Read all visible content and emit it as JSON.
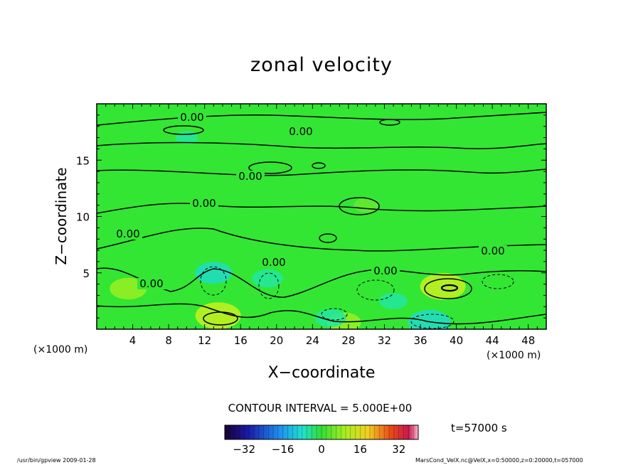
{
  "chart_data": {
    "type": "heatmap",
    "title": "zonal velocity",
    "xlabel": "X−coordinate",
    "ylabel": "Z−coordinate",
    "x_unit": "(×1000 m)",
    "y_unit": "(×1000 m)",
    "xlim": [
      0,
      50
    ],
    "ylim": [
      0,
      20
    ],
    "x_ticks": [
      4,
      8,
      12,
      16,
      20,
      24,
      28,
      32,
      36,
      40,
      44,
      48
    ],
    "y_ticks": [
      5,
      10,
      15
    ],
    "contour_interval_label": "CONTOUR INTERVAL = 5.000E+00",
    "contour_label": "0.00",
    "colorbar": {
      "ticks": [
        -32,
        -16,
        0,
        16,
        32
      ],
      "range": [
        -40,
        40
      ]
    },
    "features": [
      {
        "x": 3.5,
        "z": 3.6,
        "value": 6
      },
      {
        "x": 13.5,
        "z": 1.2,
        "value": 9
      },
      {
        "x": 27.5,
        "z": 0.6,
        "value": 5
      },
      {
        "x": 38.5,
        "z": 3.8,
        "value": 9
      },
      {
        "x": 13.0,
        "z": 5.0,
        "value": -6
      },
      {
        "x": 19.0,
        "z": 4.5,
        "value": -4
      },
      {
        "x": 33.0,
        "z": 2.5,
        "value": -3
      },
      {
        "x": 37.0,
        "z": 0.6,
        "value": -8
      },
      {
        "x": 26.0,
        "z": 1.0,
        "value": -4
      },
      {
        "x": 30.0,
        "z": 11.0,
        "value": 2
      },
      {
        "x": 10.0,
        "z": 17.0,
        "value": -1
      }
    ]
  },
  "time_label": "t=57000 s",
  "footer": {
    "left": "/usr/bin/gpview   2009-01-28",
    "right": "MarsCond_VelX.nc@VelX,x=0:50000,z=0:20000,t=057000"
  }
}
